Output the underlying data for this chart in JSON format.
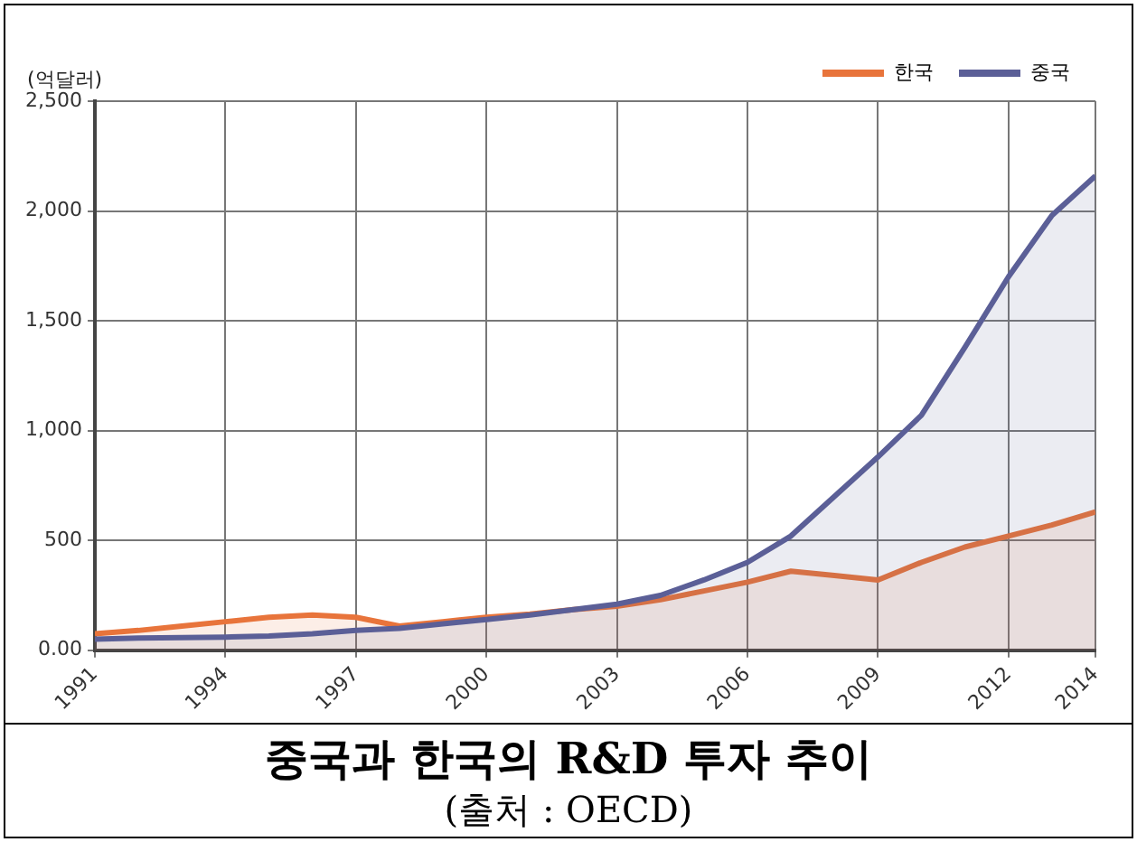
{
  "chart_data": {
    "type": "area",
    "title": "중국과 한국의 R&D 투자 추이",
    "ylabel": "(억달러)",
    "annotations": [
      "(출처 : OECD)"
    ],
    "x": [
      1991,
      1992,
      1993,
      1994,
      1995,
      1996,
      1997,
      1998,
      1999,
      2000,
      2001,
      2002,
      2003,
      2004,
      2005,
      2006,
      2007,
      2008,
      2009,
      2010,
      2011,
      2012,
      2013,
      2014
    ],
    "series": [
      {
        "name": "한국",
        "color": "#e8743b",
        "values": [
          75,
          90,
          110,
          130,
          150,
          160,
          150,
          110,
          130,
          150,
          165,
          185,
          200,
          230,
          270,
          310,
          360,
          340,
          320,
          400,
          470,
          520,
          570,
          630
        ]
      },
      {
        "name": "중국",
        "color": "#5b5f97",
        "values": [
          50,
          55,
          58,
          60,
          65,
          75,
          90,
          100,
          120,
          140,
          160,
          185,
          210,
          250,
          320,
          400,
          520,
          700,
          880,
          1070,
          1380,
          1700,
          1980,
          2160
        ]
      }
    ],
    "xlim": [
      1991,
      2014
    ],
    "xticks": [
      1991,
      1994,
      1997,
      2000,
      2003,
      2006,
      2009,
      2012,
      2014
    ],
    "ylim": [
      0,
      2500
    ],
    "yticks": [
      {
        "value": 0,
        "label": "0.00"
      },
      {
        "value": 500,
        "label": "500"
      },
      {
        "value": 1000,
        "label": "1,000"
      },
      {
        "value": 1500,
        "label": "1,500"
      },
      {
        "value": 2000,
        "label": "2,000"
      },
      {
        "value": 2500,
        "label": "2,500"
      }
    ],
    "grid": true,
    "legend": "top right",
    "line_style": "solid",
    "marker": "none"
  }
}
